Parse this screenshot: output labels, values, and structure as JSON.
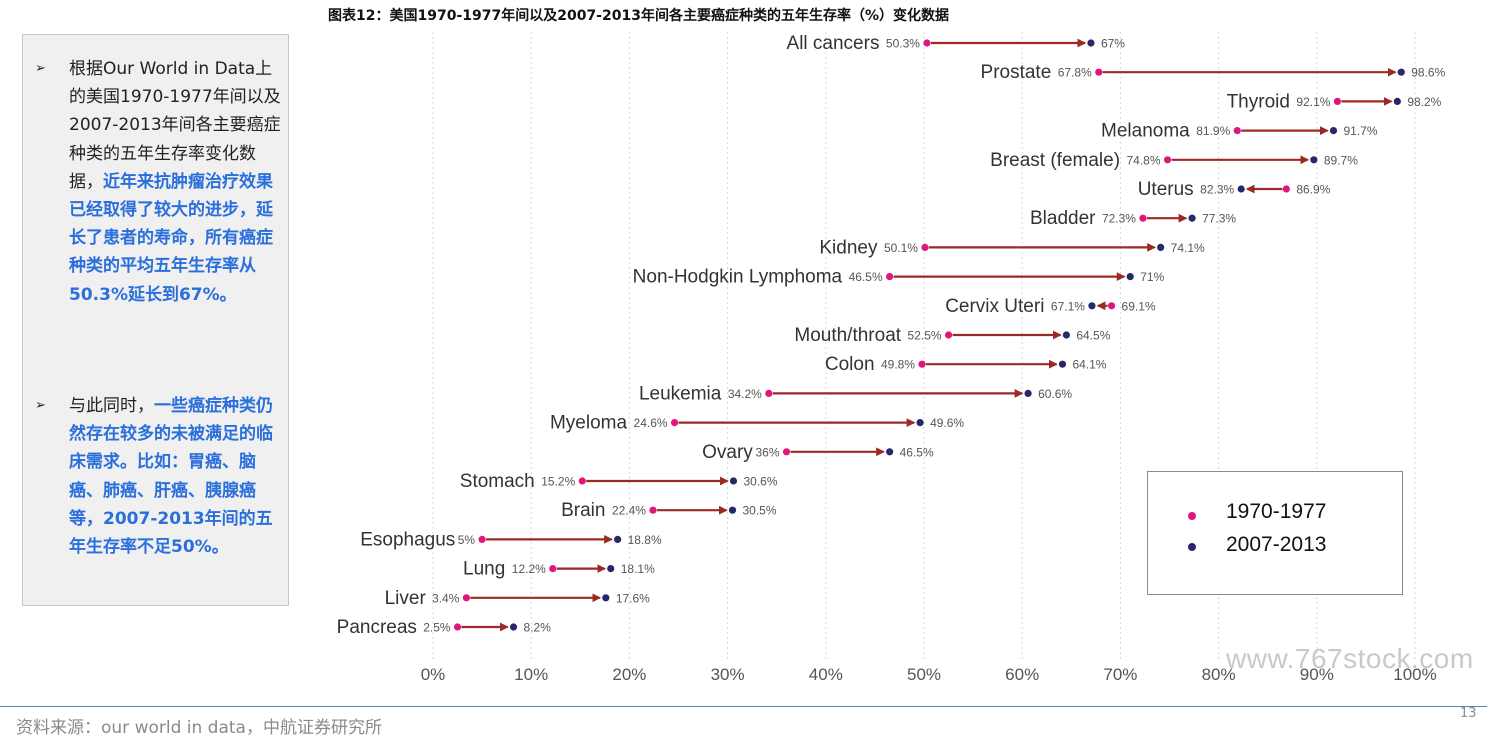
{
  "title": "图表12：美国1970-1977年间以及2007-2013年间各主要癌症种类的五年生存率（%）变化数据",
  "left_panel": {
    "bullet1_mark": "➢",
    "bullet1_plain": "根据Our World in Data上的美国1970-1977年间以及2007-2013年间各主要癌症种类的五年生存率变化数据，",
    "bullet1_highlight": "近年来抗肿瘤治疗效果已经取得了较大的进步，延长了患者的寿命，所有癌症种类的平均五年生存率从50.3%延长到67%。",
    "bullet2_mark": "➢",
    "bullet2_plain": "与此同时，",
    "bullet2_highlight": "一些癌症种类仍然存在较多的未被满足的临床需求。比如：胃癌、脑癌、肺癌、肝癌、胰腺癌等，2007-2013年间的五年生存率不足50%。"
  },
  "colors": {
    "series_1970": "#e0157d",
    "series_2007": "#27286a",
    "arrow": "#9b2a26",
    "highlight": "#2a6fdb"
  },
  "chart_data": {
    "type": "dumbbell-arrow",
    "xlim": [
      0,
      100
    ],
    "x_ticks": [
      "0%",
      "10%",
      "20%",
      "30%",
      "40%",
      "50%",
      "60%",
      "70%",
      "80%",
      "90%",
      "100%"
    ],
    "grid": "vertical-dotted",
    "legend_position": "bottom-right",
    "series": [
      {
        "name": "1970-1977"
      },
      {
        "name": "2007-2013"
      }
    ],
    "rows": [
      {
        "category": "All cancers",
        "v1970": 50.3,
        "v2007": 67,
        "label1970": "50.3%",
        "label2007": "67%"
      },
      {
        "category": "Prostate",
        "v1970": 67.8,
        "v2007": 98.6,
        "label1970": "67.8%",
        "label2007": "98.6%"
      },
      {
        "category": "Thyroid",
        "v1970": 92.1,
        "v2007": 98.2,
        "label1970": "92.1%",
        "label2007": "98.2%"
      },
      {
        "category": "Melanoma",
        "v1970": 81.9,
        "v2007": 91.7,
        "label1970": "81.9%",
        "label2007": "91.7%"
      },
      {
        "category": "Breast (female)",
        "v1970": 74.8,
        "v2007": 89.7,
        "label1970": "74.8%",
        "label2007": "89.7%"
      },
      {
        "category": "Uterus",
        "v1970": 86.9,
        "v2007": 82.3,
        "label1970": "86.9%",
        "label2007": "82.3%"
      },
      {
        "category": "Bladder",
        "v1970": 72.3,
        "v2007": 77.3,
        "label1970": "72.3%",
        "label2007": "77.3%"
      },
      {
        "category": "Kidney",
        "v1970": 50.1,
        "v2007": 74.1,
        "label1970": "50.1%",
        "label2007": "74.1%"
      },
      {
        "category": "Non-Hodgkin Lymphoma",
        "v1970": 46.5,
        "v2007": 71,
        "label1970": "46.5%",
        "label2007": "71%"
      },
      {
        "category": "Cervix Uteri",
        "v1970": 69.1,
        "v2007": 67.1,
        "label1970": "69.1%",
        "label2007": "67.1%"
      },
      {
        "category": "Mouth/throat",
        "v1970": 52.5,
        "v2007": 64.5,
        "label1970": "52.5%",
        "label2007": "64.5%"
      },
      {
        "category": "Colon",
        "v1970": 49.8,
        "v2007": 64.1,
        "label1970": "49.8%",
        "label2007": "64.1%"
      },
      {
        "category": "Leukemia",
        "v1970": 34.2,
        "v2007": 60.6,
        "label1970": "34.2%",
        "label2007": "60.6%"
      },
      {
        "category": "Myeloma",
        "v1970": 24.6,
        "v2007": 49.6,
        "label1970": "24.6%",
        "label2007": "49.6%"
      },
      {
        "category": "Ovary",
        "v1970": 36,
        "v2007": 46.5,
        "label1970": "36%",
        "label2007": "46.5%"
      },
      {
        "category": "Stomach",
        "v1970": 15.2,
        "v2007": 30.6,
        "label1970": "15.2%",
        "label2007": "30.6%"
      },
      {
        "category": "Brain",
        "v1970": 22.4,
        "v2007": 30.5,
        "label1970": "22.4%",
        "label2007": "30.5%"
      },
      {
        "category": "Esophagus",
        "v1970": 5,
        "v2007": 18.8,
        "label1970": "5%",
        "label2007": "18.8%"
      },
      {
        "category": "Lung",
        "v1970": 12.2,
        "v2007": 18.1,
        "label1970": "12.2%",
        "label2007": "18.1%"
      },
      {
        "category": "Liver",
        "v1970": 3.4,
        "v2007": 17.6,
        "label1970": "3.4%",
        "label2007": "17.6%"
      },
      {
        "category": "Pancreas",
        "v1970": 2.5,
        "v2007": 8.2,
        "label1970": "2.5%",
        "label2007": "8.2%"
      }
    ]
  },
  "watermark": "www.767stock.com",
  "source": "资料来源：our world in data，中航证券研究所",
  "page_number": "13"
}
